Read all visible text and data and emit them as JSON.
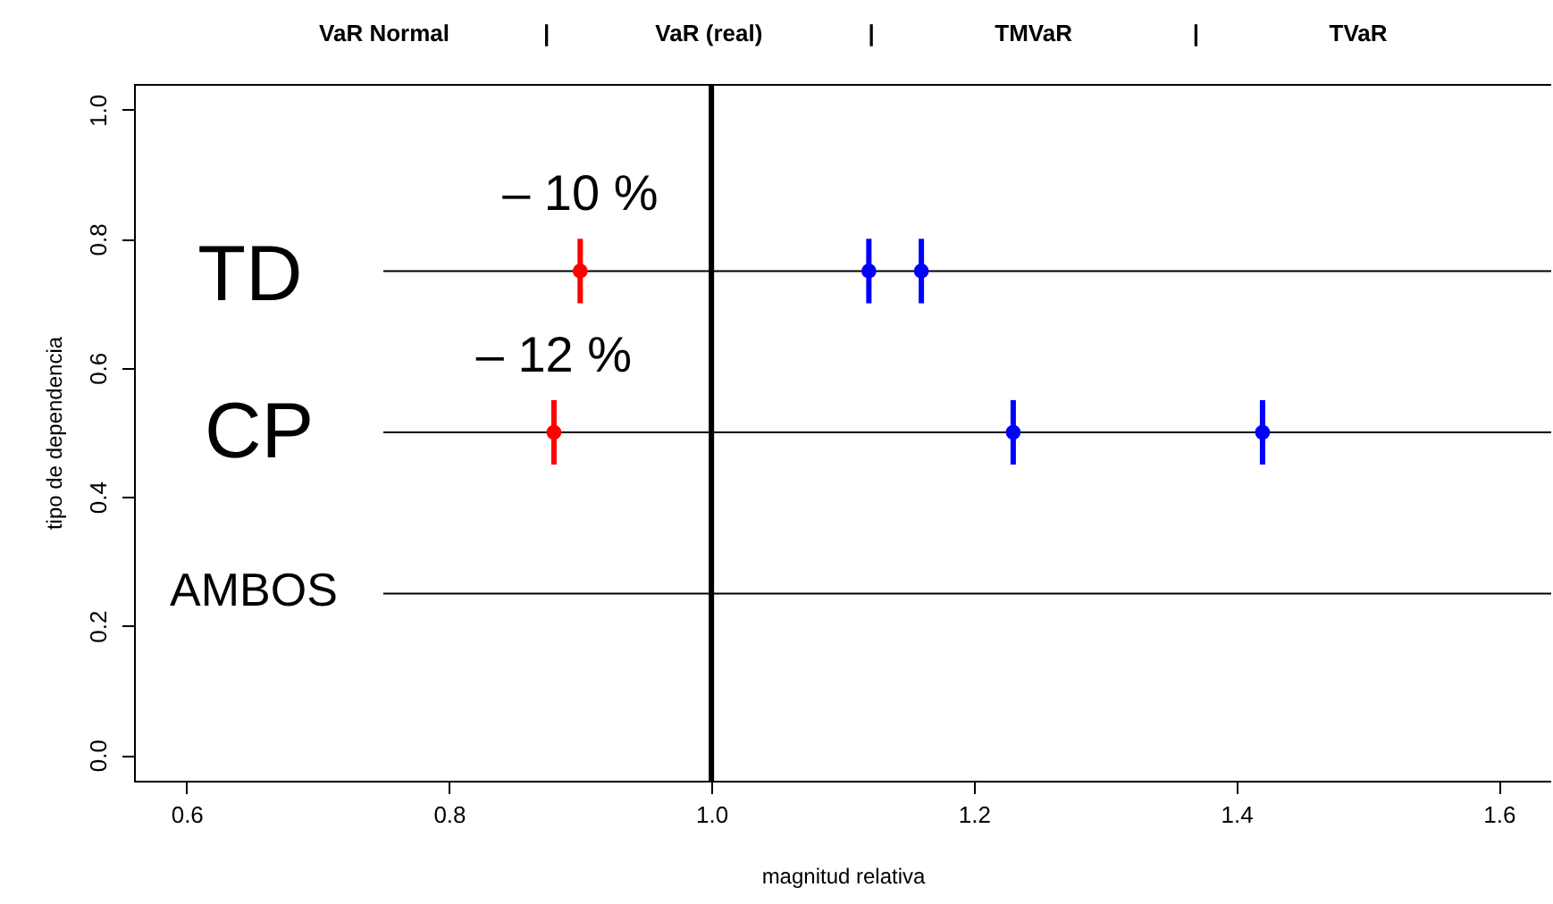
{
  "chart_data": {
    "type": "scatter",
    "title": "VaR Normal | VaR (real) | TMVaR | TVaR",
    "xlabel": "magnitud relativa",
    "ylabel": "tipo de dependencia",
    "xlim": [
      0.56,
      1.64
    ],
    "ylim": [
      -0.04,
      1.04
    ],
    "xticks": [
      0.6,
      0.8,
      {
        "value": 1.0,
        "label": "1.0"
      },
      1.2,
      1.4,
      1.6
    ],
    "yticks": [
      {
        "value": 0.0,
        "label": "0.0"
      },
      0.2,
      0.4,
      0.6,
      0.8,
      {
        "value": 1.0,
        "label": "1.0"
      }
    ],
    "grid": false,
    "series": [
      {
        "type": "line",
        "color": "#000000",
        "marker": "none",
        "x": [
          0.75,
          1.64
        ],
        "values": [
          0.75,
          0.75
        ]
      },
      {
        "type": "line",
        "color": "#000000",
        "marker": "none",
        "x": [
          0.75,
          1.64
        ],
        "values": [
          0.5,
          0.5
        ]
      },
      {
        "type": "line",
        "color": "#000000",
        "marker": "none",
        "x": [
          0.75,
          1.64
        ],
        "values": [
          0.25,
          0.25
        ]
      },
      {
        "color": "#ff0000",
        "marker": "circle",
        "x": [
          0.9,
          0.88
        ],
        "values": [
          0.75,
          0.5
        ],
        "errors": [
          0.05,
          0.05
        ]
      },
      {
        "color": "#0000ff",
        "marker": "circle",
        "x": [
          1.12,
          1.16,
          1.23,
          1.42
        ],
        "values": [
          0.75,
          0.75,
          0.5,
          0.5
        ],
        "errors": [
          0.05,
          0.05,
          0.05,
          0.05
        ]
      }
    ],
    "ref_lines": [
      {
        "axis": "x",
        "value": 1.0,
        "color": "#000000"
      }
    ],
    "annotations": [
      "TD",
      "CP",
      "AMBOS",
      {
        "text": "– 10 %",
        "x": 0.9,
        "y": 0.75
      },
      {
        "text": "– 12 %",
        "x": 0.88,
        "y": 0.5
      }
    ]
  }
}
